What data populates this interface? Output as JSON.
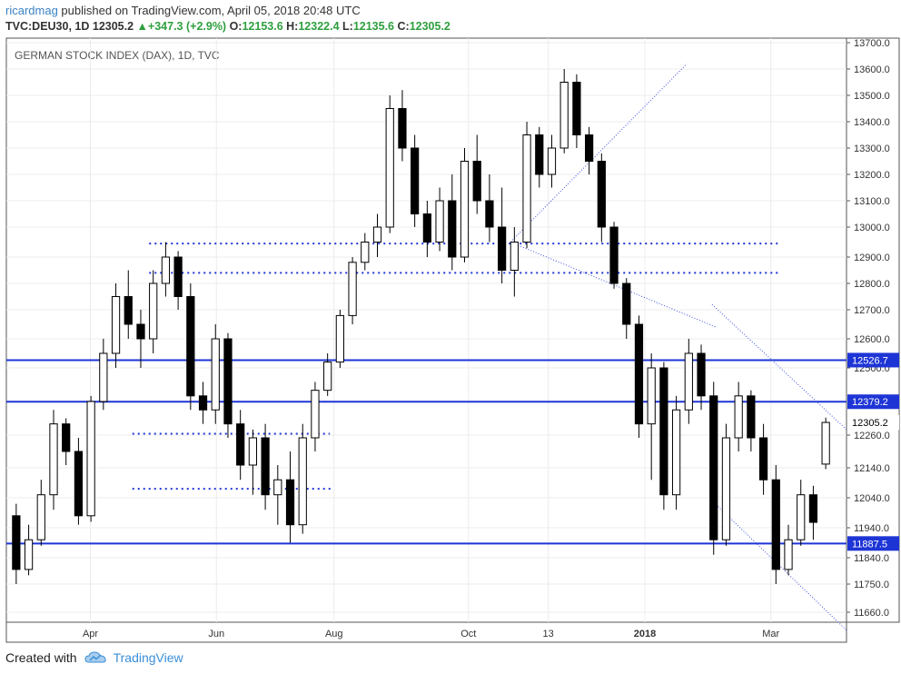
{
  "header": {
    "user": "ricardmag",
    "published": "published on TradingView.com, April 05, 2018 20:48 UTC",
    "symbol": "TVC:DEU30, 1D",
    "price": "12305.2",
    "change": "+347.3 (+2.9%)",
    "o_label": "O:",
    "o_value": "12153.6",
    "h_label": "H:",
    "h_value": "12322.4",
    "l_label": "L:",
    "l_value": "12135.6",
    "c_label": "C:",
    "c_value": "12305.2"
  },
  "footer": {
    "created_with": "Created with",
    "brand": "TradingView",
    "logo_icon": "tradingview-cloud-icon"
  },
  "chart_data": {
    "type": "candlestick",
    "title": "GERMAN STOCK INDEX (DAX), 1D, TVC",
    "ylim": [
      11600,
      13720
    ],
    "y_ticks": [
      13700,
      13600,
      13500,
      13400,
      13300,
      13200,
      13100,
      13000,
      12900,
      12800,
      12700,
      12600,
      12500,
      12260,
      12140,
      12040,
      11940,
      11840,
      11750,
      11660
    ],
    "x_ticks": [
      {
        "label": "Apr",
        "x": 0.1
      },
      {
        "label": "Jun",
        "x": 0.25
      },
      {
        "label": "Aug",
        "x": 0.39
      },
      {
        "label": "Oct",
        "x": 0.55
      },
      {
        "label": "13",
        "x": 0.645
      },
      {
        "label": "2018",
        "x": 0.76
      },
      {
        "label": "Mar",
        "x": 0.91
      }
    ],
    "price_labels": [
      {
        "value": 12526.7,
        "text": "12526.7",
        "style": "level"
      },
      {
        "value": 12379.2,
        "text": "12379.2",
        "style": "level"
      },
      {
        "value": 12305.2,
        "text": "12305.2",
        "style": "last"
      },
      {
        "value": 11887.5,
        "text": "11887.5",
        "style": "level"
      }
    ],
    "horizontal_levels": [
      12526.7,
      12379.2,
      11887.5
    ],
    "dotted_levels": [
      {
        "value": 12945,
        "x1": 0.17,
        "x2": 0.92
      },
      {
        "value": 12840,
        "x1": 0.17,
        "x2": 0.92
      },
      {
        "value": 12265,
        "x1": 0.15,
        "x2": 0.385
      },
      {
        "value": 12070,
        "x1": 0.15,
        "x2": 0.39
      }
    ],
    "trend_lines": [
      {
        "x1": 0.6,
        "y1": 12950,
        "x2": 0.81,
        "y2": 13620
      },
      {
        "x1": 0.6,
        "y1": 12950,
        "x2": 0.845,
        "y2": 12640
      },
      {
        "x1": 0.84,
        "y1": 12720,
        "x2": 1.0,
        "y2": 12280
      },
      {
        "x1": 0.84,
        "y1": 12030,
        "x2": 1.0,
        "y2": 11600
      }
    ],
    "candles_ohlc_sample": [
      [
        11980,
        12020,
        11750,
        11800
      ],
      [
        11800,
        11950,
        11780,
        11900
      ],
      [
        11900,
        12100,
        11880,
        12050
      ],
      [
        12050,
        12350,
        12000,
        12300
      ],
      [
        12300,
        12320,
        12150,
        12200
      ],
      [
        12200,
        12250,
        11950,
        11980
      ],
      [
        11980,
        12400,
        11960,
        12380
      ],
      [
        12380,
        12600,
        12350,
        12550
      ],
      [
        12550,
        12800,
        12500,
        12750
      ],
      [
        12750,
        12850,
        12600,
        12650
      ],
      [
        12650,
        12700,
        12500,
        12600
      ],
      [
        12600,
        12850,
        12550,
        12800
      ],
      [
        12800,
        12950,
        12750,
        12900
      ],
      [
        12900,
        12920,
        12700,
        12750
      ],
      [
        12750,
        12800,
        12350,
        12400
      ],
      [
        12400,
        12450,
        12300,
        12350
      ],
      [
        12350,
        12650,
        12300,
        12600
      ],
      [
        12600,
        12620,
        12250,
        12300
      ],
      [
        12300,
        12350,
        12100,
        12150
      ],
      [
        12150,
        12280,
        12050,
        12250
      ],
      [
        12250,
        12300,
        12000,
        12050
      ],
      [
        12050,
        12150,
        11950,
        12100
      ],
      [
        12100,
        12200,
        11890,
        11950
      ],
      [
        11950,
        12300,
        11920,
        12250
      ],
      [
        12250,
        12450,
        12200,
        12420
      ],
      [
        12420,
        12550,
        12400,
        12520
      ],
      [
        12520,
        12700,
        12500,
        12680
      ],
      [
        12680,
        12900,
        12650,
        12880
      ],
      [
        12880,
        12980,
        12850,
        12950
      ],
      [
        12950,
        13050,
        12900,
        13000
      ],
      [
        13000,
        13500,
        12980,
        13450
      ],
      [
        13450,
        13520,
        13250,
        13300
      ],
      [
        13300,
        13350,
        13000,
        13050
      ],
      [
        13050,
        13100,
        12900,
        12950
      ],
      [
        12950,
        13150,
        12920,
        13100
      ],
      [
        13100,
        13200,
        12850,
        12900
      ],
      [
        12900,
        13300,
        12880,
        13250
      ],
      [
        13250,
        13350,
        13050,
        13100
      ],
      [
        13100,
        13200,
        12950,
        13000
      ],
      [
        13000,
        13150,
        12800,
        12850
      ],
      [
        12850,
        13000,
        12750,
        12950
      ],
      [
        12950,
        13400,
        12930,
        13350
      ],
      [
        13350,
        13380,
        13150,
        13200
      ],
      [
        13200,
        13350,
        13150,
        13300
      ],
      [
        13300,
        13600,
        13280,
        13550
      ],
      [
        13550,
        13580,
        13300,
        13350
      ],
      [
        13350,
        13380,
        13200,
        13250
      ],
      [
        13250,
        13280,
        12950,
        13000
      ],
      [
        13000,
        13020,
        12780,
        12800
      ],
      [
        12800,
        12820,
        12600,
        12650
      ],
      [
        12650,
        12680,
        12250,
        12300
      ],
      [
        12300,
        12550,
        12100,
        12500
      ],
      [
        12500,
        12520,
        12000,
        12050
      ],
      [
        12050,
        12400,
        12000,
        12350
      ],
      [
        12350,
        12600,
        12300,
        12550
      ],
      [
        12550,
        12580,
        12350,
        12400
      ],
      [
        12400,
        12450,
        11850,
        11900
      ],
      [
        11900,
        12300,
        11880,
        12250
      ],
      [
        12250,
        12450,
        12200,
        12400
      ],
      [
        12400,
        12420,
        12200,
        12250
      ],
      [
        12250,
        12300,
        12050,
        12100
      ],
      [
        12100,
        12150,
        11750,
        11800
      ],
      [
        11800,
        11950,
        11780,
        11900
      ],
      [
        11900,
        12100,
        11880,
        12050
      ],
      [
        12050,
        12080,
        11900,
        11958
      ],
      [
        12153.6,
        12322.4,
        12135.6,
        12305.2
      ]
    ]
  }
}
